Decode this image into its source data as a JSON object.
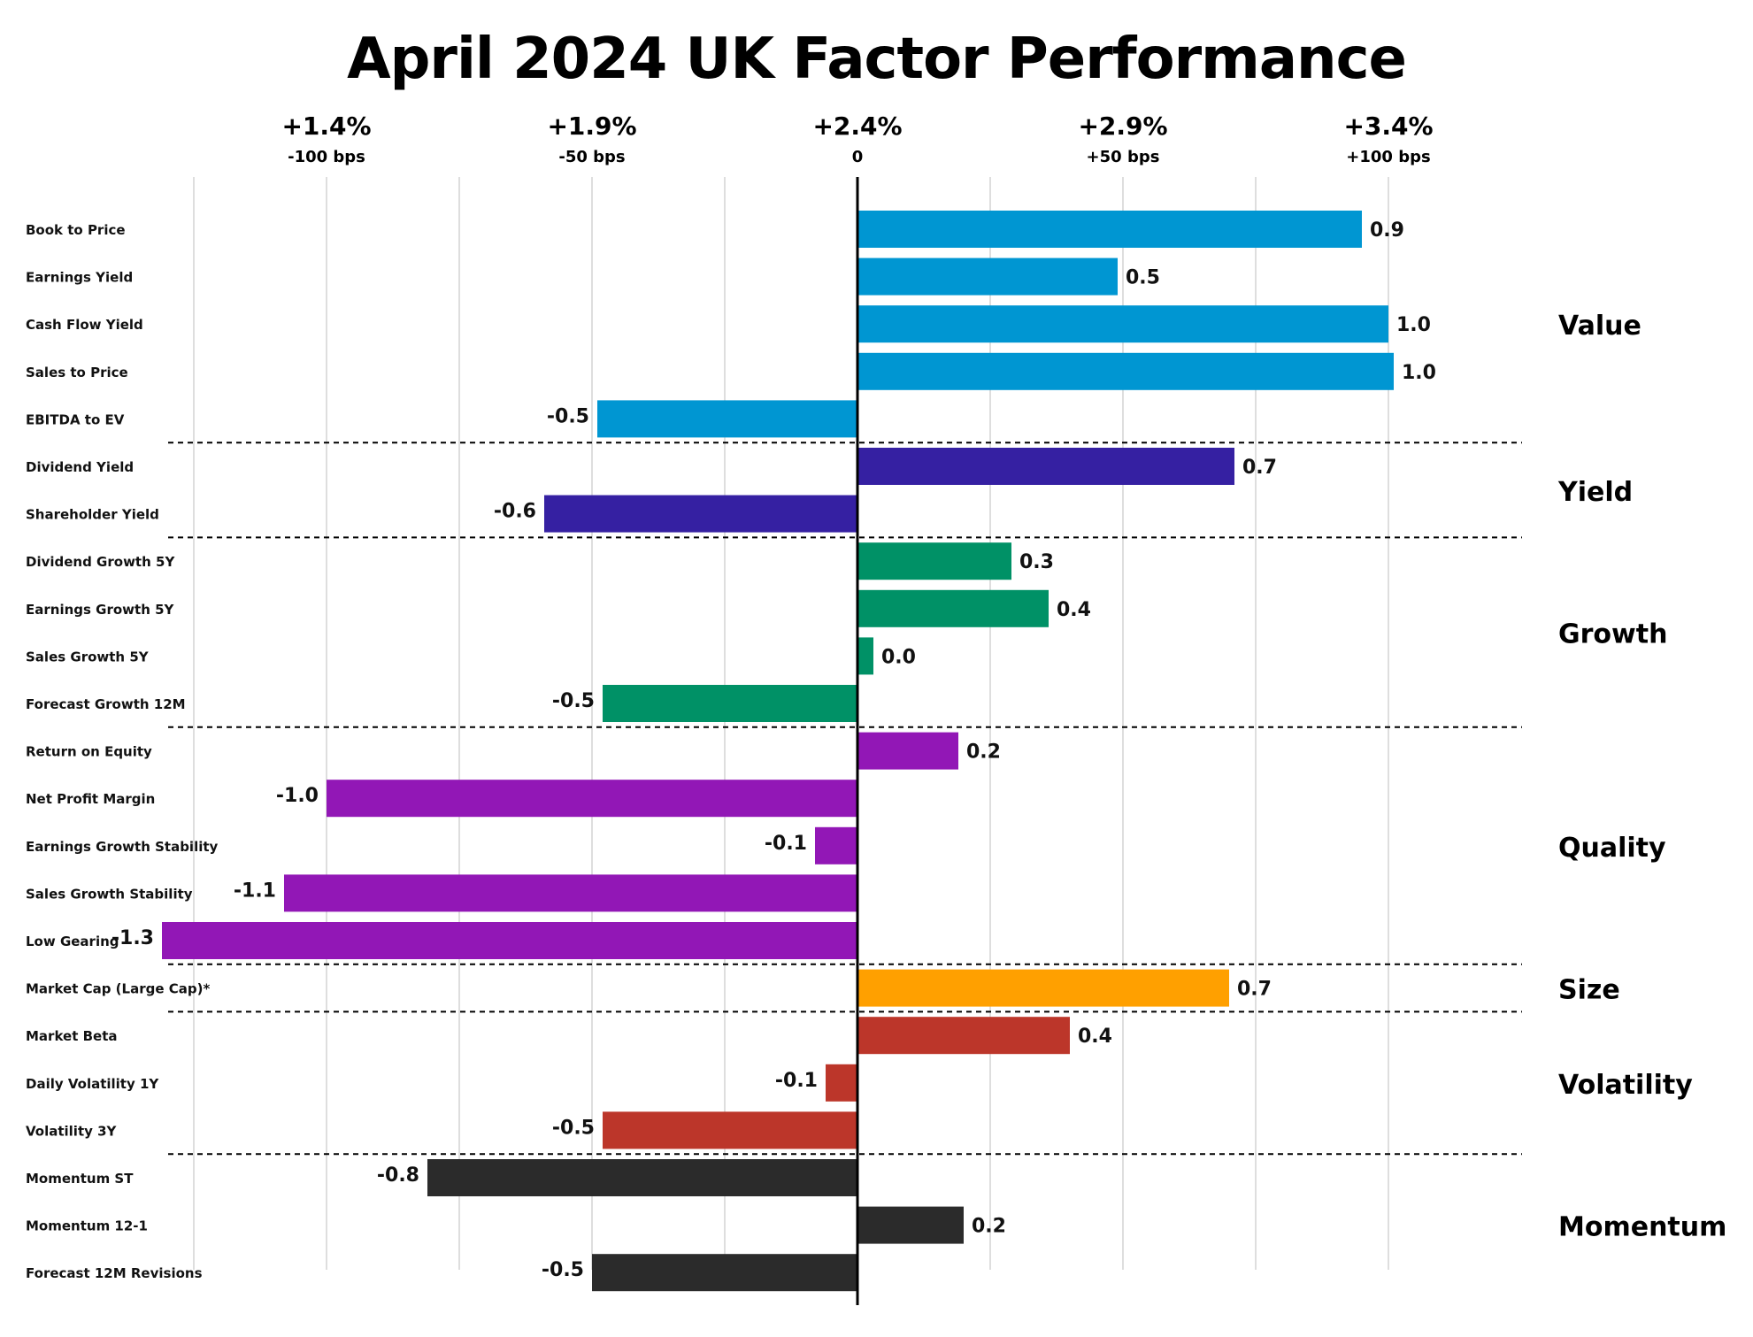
{
  "chart_data": {
    "type": "bar",
    "orientation": "horizontal",
    "title": "April 2024 UK Factor Performance",
    "x_ticks": [
      {
        "value": -1.0,
        "top_label": "+1.4%",
        "bottom_label": "-100 bps"
      },
      {
        "value": -0.5,
        "top_label": "+1.9%",
        "bottom_label": "-50 bps"
      },
      {
        "value": 0.0,
        "top_label": "+2.4%",
        "bottom_label": "0"
      },
      {
        "value": 0.5,
        "top_label": "+2.9%",
        "bottom_label": "+50 bps"
      },
      {
        "value": 1.0,
        "top_label": "+3.4%",
        "bottom_label": "+100 bps"
      }
    ],
    "xlim": [
      -1.25,
      1.25
    ],
    "gridline_values": [
      -1.25,
      -1.0,
      -0.75,
      -0.5,
      -0.25,
      0.25,
      0.5,
      0.75,
      1.0
    ],
    "groups": [
      {
        "name": "Value",
        "color": "#0096D2",
        "factors": [
          {
            "label": "Book to Price",
            "value": 0.95,
            "value_label": "0.9"
          },
          {
            "label": "Earnings Yield",
            "value": 0.49,
            "value_label": "0.5"
          },
          {
            "label": "Cash Flow Yield",
            "value": 1.0,
            "value_label": "1.0"
          },
          {
            "label": "Sales to Price",
            "value": 1.01,
            "value_label": "1.0"
          },
          {
            "label": "EBITDA to EV",
            "value": -0.49,
            "value_label": "-0.5"
          }
        ]
      },
      {
        "name": "Yield",
        "color": "#3520A2",
        "factors": [
          {
            "label": "Dividend Yield",
            "value": 0.71,
            "value_label": "0.7"
          },
          {
            "label": "Shareholder Yield",
            "value": -0.59,
            "value_label": "-0.6"
          }
        ]
      },
      {
        "name": "Growth",
        "color": "#009166",
        "factors": [
          {
            "label": "Dividend Growth 5Y",
            "value": 0.29,
            "value_label": "0.3"
          },
          {
            "label": "Earnings Growth 5Y",
            "value": 0.36,
            "value_label": "0.4"
          },
          {
            "label": "Sales Growth 5Y",
            "value": 0.03,
            "value_label": "0.0"
          },
          {
            "label": "Forecast Growth 12M",
            "value": -0.48,
            "value_label": "-0.5"
          }
        ]
      },
      {
        "name": "Quality",
        "color": "#9217B6",
        "factors": [
          {
            "label": "Return on Equity",
            "value": 0.19,
            "value_label": "0.2"
          },
          {
            "label": "Net Profit Margin",
            "value": -1.0,
            "value_label": "-1.0"
          },
          {
            "label": "Earnings Growth Stability",
            "value": -0.08,
            "value_label": "-0.1"
          },
          {
            "label": "Sales Growth Stability",
            "value": -1.08,
            "value_label": "-1.1"
          },
          {
            "label": "Low Gearing",
            "value": -1.31,
            "value_label": "-1.3"
          }
        ]
      },
      {
        "name": "Size",
        "color": "#FFA000",
        "factors": [
          {
            "label": "Market Cap (Large Cap)*",
            "value": 0.7,
            "value_label": "0.7"
          }
        ]
      },
      {
        "name": "Volatility",
        "color": "#BC362A",
        "factors": [
          {
            "label": "Market Beta",
            "value": 0.4,
            "value_label": "0.4"
          },
          {
            "label": "Daily Volatility 1Y",
            "value": -0.06,
            "value_label": "-0.1"
          },
          {
            "label": "Volatility 3Y",
            "value": -0.48,
            "value_label": "-0.5"
          }
        ]
      },
      {
        "name": "Momentum",
        "color": "#2B2B2B",
        "factors": [
          {
            "label": "Momentum ST",
            "value": -0.81,
            "value_label": "-0.8"
          },
          {
            "label": "Momentum 12-1",
            "value": 0.2,
            "value_label": "0.2"
          },
          {
            "label": "Forecast 12M Revisions",
            "value": -0.5,
            "value_label": "-0.5"
          }
        ]
      }
    ]
  }
}
